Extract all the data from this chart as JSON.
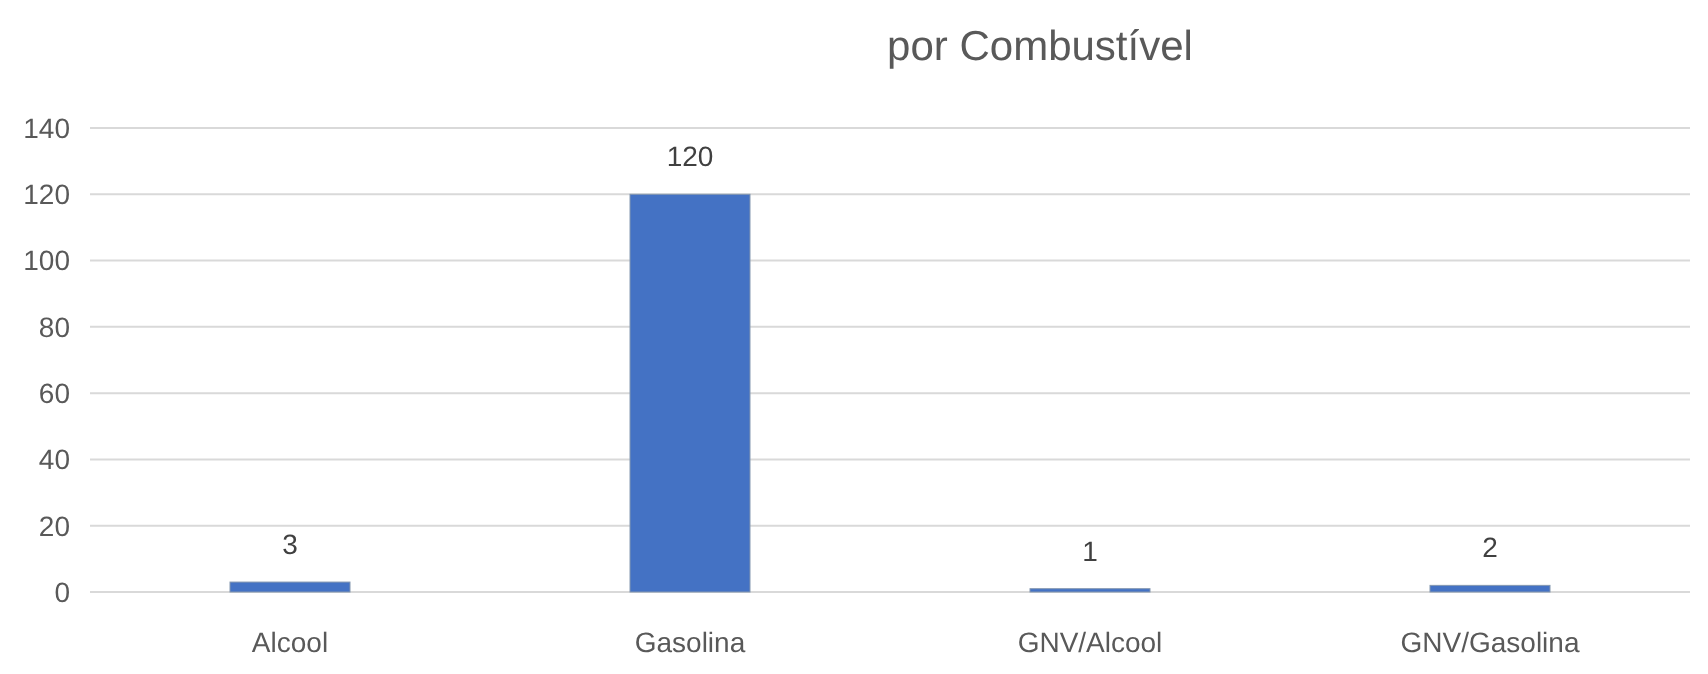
{
  "chart_data": {
    "type": "bar",
    "title": "por Combustível",
    "categories": [
      "Alcool",
      "Gasolina",
      "GNV/Alcool",
      "GNV/Gasolina"
    ],
    "values": [
      3,
      120,
      1,
      2
    ],
    "color": "#4472c4",
    "ylim": [
      0,
      140
    ],
    "yticks": [
      0,
      20,
      40,
      60,
      80,
      100,
      120,
      140
    ],
    "grid": "y",
    "data_labels": true
  }
}
